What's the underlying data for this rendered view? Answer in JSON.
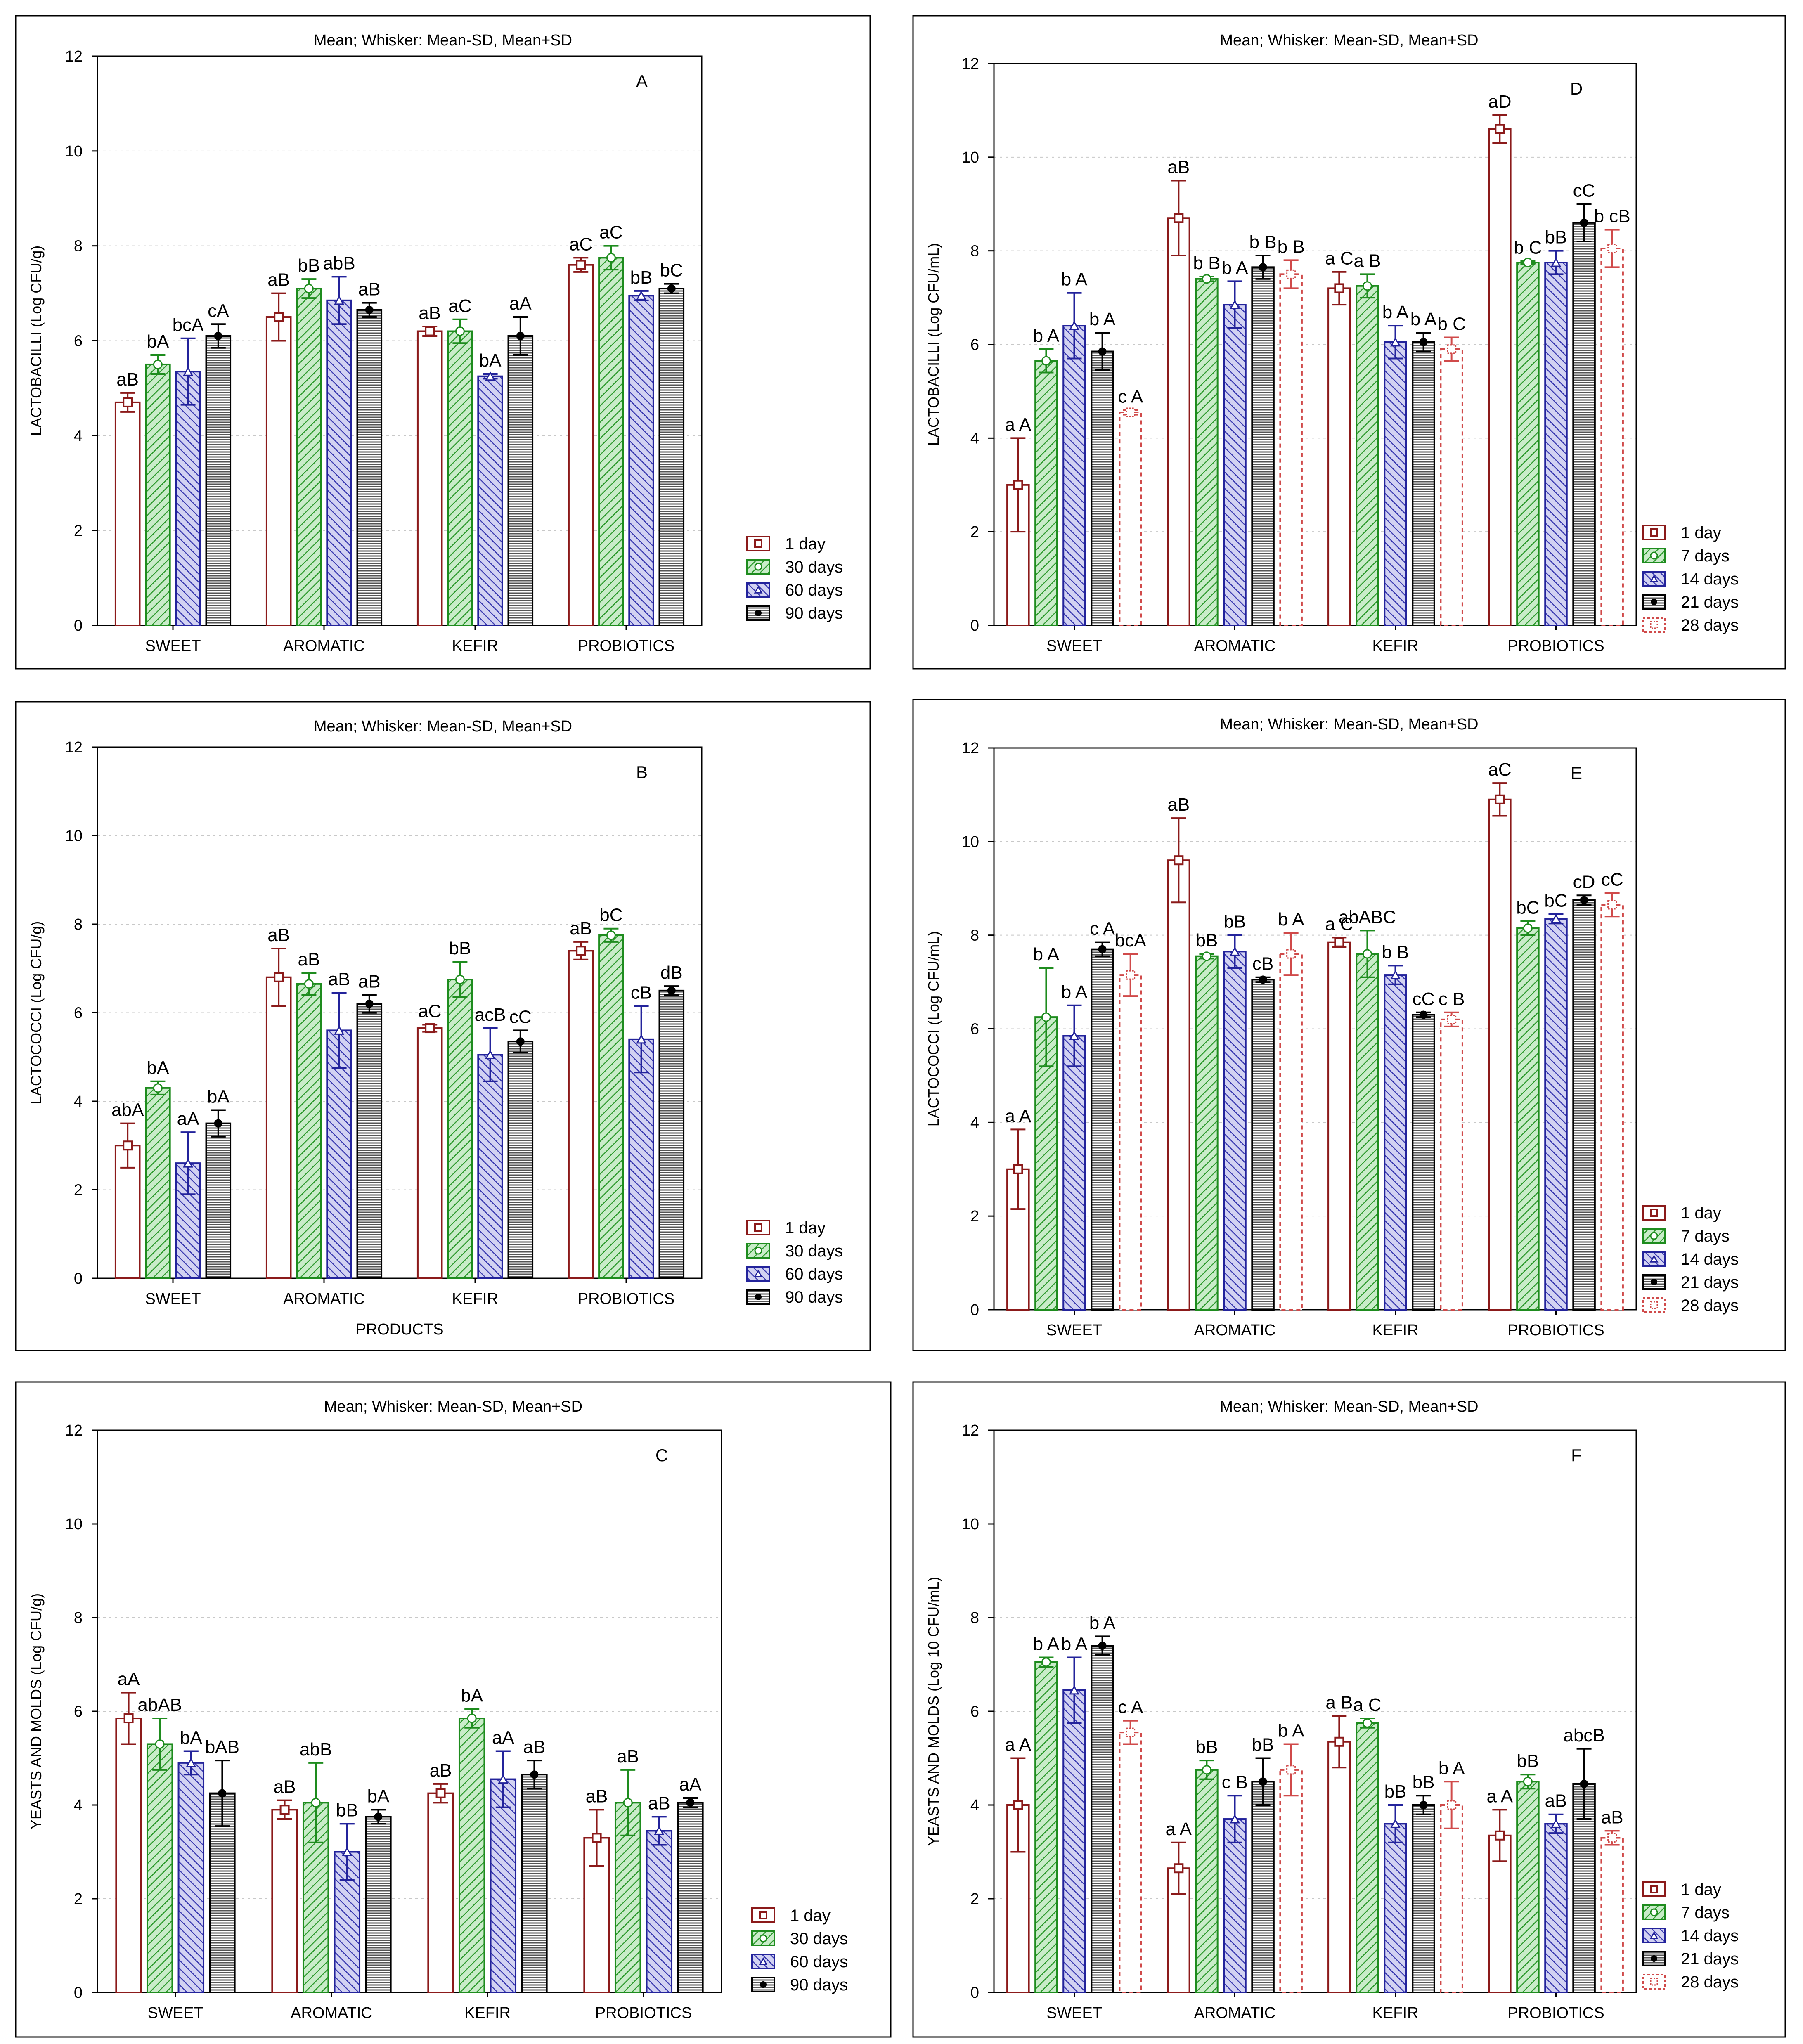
{
  "colors": {
    "frame": "#000000",
    "grid": "#c8c8c8",
    "day1": "#8b1a1a",
    "green": "#1e8c1e",
    "green_fill": "#9ed89e",
    "blue": "#23239b",
    "blue_fill": "#a8a8e0",
    "black": "#000000",
    "hatch_grey": "#9a9a9a",
    "pink": "#d04a4a"
  },
  "legend_sets": {
    "A": [
      "1 day",
      "30 days",
      "60 days",
      "90 days"
    ],
    "D": [
      "1 day",
      "7 days",
      "14 days",
      "21 days",
      "28 days"
    ]
  },
  "chart_data": [
    {
      "id": "A",
      "panel_letter": "A",
      "type": "bar",
      "title": "Mean;  Whisker: Mean-SD, Mean+SD",
      "ylabel": "LACTOBACILLI  (Log CFU/g)",
      "xlabel": "",
      "ylim": [
        0,
        12
      ],
      "yticks": [
        "0",
        "2",
        "4",
        "6",
        "8",
        "10",
        "12"
      ],
      "categories": [
        "SWEET",
        "AROMATIC",
        "KEFIR",
        "PROBIOTICS"
      ],
      "series": [
        {
          "name": "1 day",
          "values": [
            4.7,
            6.5,
            6.2,
            7.6
          ],
          "sd": [
            0.2,
            0.5,
            0.1,
            0.15
          ],
          "labels": [
            "aB",
            "aB",
            "aB",
            "aC"
          ]
        },
        {
          "name": "30 days",
          "values": [
            5.5,
            7.1,
            6.2,
            7.75
          ],
          "sd": [
            0.2,
            0.2,
            0.25,
            0.25
          ],
          "labels": [
            "bA",
            "bB",
            "aC",
            "aC"
          ]
        },
        {
          "name": "60 days",
          "values": [
            5.35,
            6.85,
            5.25,
            6.95
          ],
          "sd": [
            0.7,
            0.5,
            0.05,
            0.1
          ],
          "labels": [
            "bcA",
            "abB",
            "bA",
            "bB"
          ]
        },
        {
          "name": "90 days",
          "values": [
            6.1,
            6.65,
            6.1,
            7.1
          ],
          "sd": [
            0.25,
            0.15,
            0.4,
            0.1
          ],
          "labels": [
            "cA",
            "aB",
            "aA",
            "bC"
          ]
        }
      ]
    },
    {
      "id": "B",
      "panel_letter": "B",
      "type": "bar",
      "title": "Mean;  Whisker: Mean-SD, Mean+SD",
      "ylabel": "LACTOCOCCI  (Log CFU/g)",
      "xlabel": "PRODUCTS",
      "ylim": [
        0,
        12
      ],
      "yticks": [
        "0",
        "2",
        "4",
        "6",
        "8",
        "10",
        "12"
      ],
      "categories": [
        "SWEET",
        "AROMATIC",
        "KEFIR",
        "PROBIOTICS"
      ],
      "series": [
        {
          "name": "1 day",
          "values": [
            3.0,
            6.8,
            5.65,
            7.4
          ],
          "sd": [
            0.5,
            0.65,
            0.08,
            0.2
          ],
          "labels": [
            "abA",
            "aB",
            "aC",
            "aB"
          ]
        },
        {
          "name": "30 days",
          "values": [
            4.3,
            6.65,
            6.75,
            7.75
          ],
          "sd": [
            0.15,
            0.25,
            0.4,
            0.15
          ],
          "labels": [
            "bA",
            "aB",
            "bB",
            "bC"
          ]
        },
        {
          "name": "60 days",
          "values": [
            2.6,
            5.6,
            5.05,
            5.4
          ],
          "sd": [
            0.7,
            0.85,
            0.6,
            0.75
          ],
          "labels": [
            "aA",
            "aB",
            "acB",
            "cB"
          ]
        },
        {
          "name": "90 days",
          "values": [
            3.5,
            6.2,
            5.35,
            6.5
          ],
          "sd": [
            0.3,
            0.2,
            0.25,
            0.1
          ],
          "labels": [
            "bA",
            "aB",
            "cC",
            "dB"
          ]
        }
      ]
    },
    {
      "id": "C",
      "panel_letter": "C",
      "type": "bar",
      "title": "Mean;  Whisker: Mean-SD, Mean+SD",
      "ylabel": "YEASTS AND MOLDS  (Log CFU/g)",
      "xlabel": "",
      "ylim": [
        0,
        12
      ],
      "yticks": [
        "0",
        "2",
        "4",
        "6",
        "8",
        "10",
        "12"
      ],
      "categories": [
        "SWEET",
        "AROMATIC",
        "KEFIR",
        "PROBIOTICS"
      ],
      "series": [
        {
          "name": "1 day",
          "values": [
            5.85,
            3.9,
            4.25,
            3.3
          ],
          "sd": [
            0.55,
            0.2,
            0.2,
            0.6
          ],
          "labels": [
            "aA",
            "aB",
            "aB",
            "aB"
          ]
        },
        {
          "name": "30 days",
          "values": [
            5.3,
            4.05,
            5.85,
            4.05
          ],
          "sd": [
            0.55,
            0.85,
            0.2,
            0.7
          ],
          "labels": [
            "abAB",
            "abB",
            "bA",
            "aB"
          ]
        },
        {
          "name": "60 days",
          "values": [
            4.9,
            3.0,
            4.55,
            3.45
          ],
          "sd": [
            0.25,
            0.6,
            0.6,
            0.3
          ],
          "labels": [
            "bA",
            "bB",
            "aA",
            "aB"
          ]
        },
        {
          "name": "90 days",
          "values": [
            4.25,
            3.75,
            4.65,
            4.05
          ],
          "sd": [
            0.7,
            0.15,
            0.3,
            0.1
          ],
          "labels": [
            "bAB",
            "bA",
            "aB",
            "aA"
          ]
        }
      ]
    },
    {
      "id": "D",
      "panel_letter": "D",
      "type": "bar",
      "title": "Mean;  Whisker: Mean-SD, Mean+SD",
      "ylabel": "LACTOBACILLI  (Log CFU/mL)",
      "xlabel": "",
      "ylim": [
        0,
        12
      ],
      "yticks": [
        "0",
        "2",
        "4",
        "6",
        "8",
        "10",
        "12"
      ],
      "categories": [
        "SWEET",
        "AROMATIC",
        "KEFIR",
        "PROBIOTICS"
      ],
      "series": [
        {
          "name": "1 day",
          "values": [
            3.0,
            8.7,
            7.2,
            10.6
          ],
          "sd": [
            1.0,
            0.8,
            0.35,
            0.3
          ],
          "labels": [
            "a A",
            "aB",
            "a C",
            "aD"
          ]
        },
        {
          "name": "7 days",
          "values": [
            5.65,
            7.4,
            7.25,
            7.75
          ],
          "sd": [
            0.25,
            0.05,
            0.25,
            0.03
          ],
          "labels": [
            "b A",
            "b B",
            "a B",
            "b C"
          ]
        },
        {
          "name": "14 days",
          "values": [
            6.4,
            6.85,
            6.05,
            7.75
          ],
          "sd": [
            0.7,
            0.5,
            0.35,
            0.25
          ],
          "labels": [
            "b A",
            "b A",
            "b A",
            "bB"
          ]
        },
        {
          "name": "21 days",
          "values": [
            5.85,
            7.65,
            6.05,
            8.6
          ],
          "sd": [
            0.4,
            0.25,
            0.2,
            0.4
          ],
          "labels": [
            "b A",
            "b B",
            "b A",
            "cC"
          ]
        },
        {
          "name": "28 days",
          "values": [
            4.55,
            7.5,
            5.9,
            8.05
          ],
          "sd": [
            0.05,
            0.3,
            0.25,
            0.4
          ],
          "labels": [
            "c A",
            "b B",
            "b C",
            "b cB"
          ]
        }
      ]
    },
    {
      "id": "E",
      "panel_letter": "E",
      "type": "bar",
      "title": "Mean;  Whisker: Mean-SD, Mean+SD",
      "ylabel": "LACTOCOCCI (Log CFU/mL)",
      "xlabel": "",
      "ylim": [
        0,
        12
      ],
      "yticks": [
        "0",
        "2",
        "4",
        "6",
        "8",
        "10",
        "12"
      ],
      "categories": [
        "SWEET",
        "AROMATIC",
        "KEFIR",
        "PROBIOTICS"
      ],
      "series": [
        {
          "name": "1 day",
          "values": [
            3.0,
            9.6,
            7.85,
            10.9
          ],
          "sd": [
            0.85,
            0.9,
            0.1,
            0.35
          ],
          "labels": [
            "a A",
            "aB",
            "a C",
            "aC"
          ]
        },
        {
          "name": "7 days",
          "values": [
            6.25,
            7.55,
            7.6,
            8.15
          ],
          "sd": [
            1.05,
            0.05,
            0.5,
            0.15
          ],
          "labels": [
            "b A",
            "bB",
            "abABC",
            "bC"
          ]
        },
        {
          "name": "14 days",
          "values": [
            5.85,
            7.65,
            7.15,
            8.35
          ],
          "sd": [
            0.65,
            0.35,
            0.2,
            0.1
          ],
          "labels": [
            "b A",
            "bB",
            "b B",
            "bC"
          ]
        },
        {
          "name": "21 days",
          "values": [
            7.7,
            7.05,
            6.3,
            8.75
          ],
          "sd": [
            0.15,
            0.05,
            0.05,
            0.1
          ],
          "labels": [
            "c A",
            "cB",
            "cC",
            "cD"
          ]
        },
        {
          "name": "28 days",
          "values": [
            7.15,
            7.6,
            6.2,
            8.65
          ],
          "sd": [
            0.45,
            0.45,
            0.15,
            0.25
          ],
          "labels": [
            "bcA",
            "b A",
            "c B",
            "cC"
          ]
        }
      ]
    },
    {
      "id": "F",
      "panel_letter": "F",
      "type": "bar",
      "title": "Mean;  Whisker: Mean-SD, Mean+SD",
      "ylabel": "YEASTS AND MOLDS (Log 10 CFU/mL)",
      "xlabel": "",
      "ylim": [
        0,
        12
      ],
      "yticks": [
        "0",
        "2",
        "4",
        "6",
        "8",
        "10",
        "12"
      ],
      "categories": [
        "SWEET",
        "AROMATIC",
        "KEFIR",
        "PROBIOTICS"
      ],
      "series": [
        {
          "name": "1 day",
          "values": [
            4.0,
            2.65,
            5.35,
            3.35
          ],
          "sd": [
            1.0,
            0.55,
            0.55,
            0.55
          ],
          "labels": [
            "a A",
            "a A",
            "a B",
            "a A"
          ]
        },
        {
          "name": "7 days",
          "values": [
            7.05,
            4.75,
            5.75,
            4.5
          ],
          "sd": [
            0.1,
            0.2,
            0.1,
            0.15
          ],
          "labels": [
            "b A",
            "bB",
            "a C",
            "bB"
          ]
        },
        {
          "name": "14 days",
          "values": [
            6.45,
            3.7,
            3.6,
            3.6
          ],
          "sd": [
            0.7,
            0.5,
            0.4,
            0.2
          ],
          "labels": [
            "b A",
            "c B",
            "bB",
            "aB"
          ]
        },
        {
          "name": "21 days",
          "values": [
            7.4,
            4.5,
            4.0,
            4.45
          ],
          "sd": [
            0.2,
            0.5,
            0.2,
            0.75
          ],
          "labels": [
            "b A",
            "bB",
            "bB",
            "abcB"
          ]
        },
        {
          "name": "28 days",
          "values": [
            5.55,
            4.75,
            4.0,
            3.3
          ],
          "sd": [
            0.25,
            0.55,
            0.5,
            0.15
          ],
          "labels": [
            "c A",
            "b A",
            "b A",
            "aB"
          ]
        }
      ]
    }
  ]
}
